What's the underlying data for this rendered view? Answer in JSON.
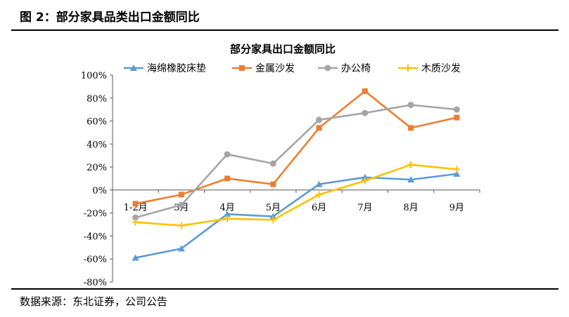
{
  "figure": {
    "caption": "图 2：部分家具品类出口金额同比",
    "source": "数据来源：东北证券，公司公告"
  },
  "chart_data": {
    "type": "line",
    "title": "部分家具出口金额同比",
    "xlabel": "",
    "ylabel": "",
    "categories": [
      "1-2月",
      "3月",
      "4月",
      "5月",
      "6月",
      "7月",
      "8月",
      "9月"
    ],
    "ylim": [
      -80,
      100
    ],
    "yticks": [
      -80,
      -60,
      -40,
      -20,
      0,
      20,
      40,
      60,
      80,
      100
    ],
    "ytick_labels": [
      "-80%",
      "-60%",
      "-40%",
      "-20%",
      "0%",
      "20%",
      "40%",
      "60%",
      "80%",
      "100%"
    ],
    "y_unit": "%",
    "grid": false,
    "legend_position": "top",
    "series": [
      {
        "name": "海绵橡胶床垫",
        "color": "#5B9BD5",
        "marker": "triangle",
        "values": [
          -59,
          -51,
          -21,
          -23,
          5,
          11,
          9,
          14
        ]
      },
      {
        "name": "金属沙发",
        "color": "#ED7D31",
        "marker": "square",
        "values": [
          -12,
          -4,
          10,
          5,
          54,
          86,
          54,
          63
        ]
      },
      {
        "name": "办公椅",
        "color": "#A5A5A5",
        "marker": "circle",
        "values": [
          -24,
          -13,
          31,
          23,
          61,
          67,
          74,
          70
        ]
      },
      {
        "name": "木质沙发",
        "color": "#FFC000",
        "marker": "cross",
        "values": [
          -28,
          -31,
          -25,
          -26,
          -4,
          8,
          22,
          18
        ]
      }
    ]
  }
}
